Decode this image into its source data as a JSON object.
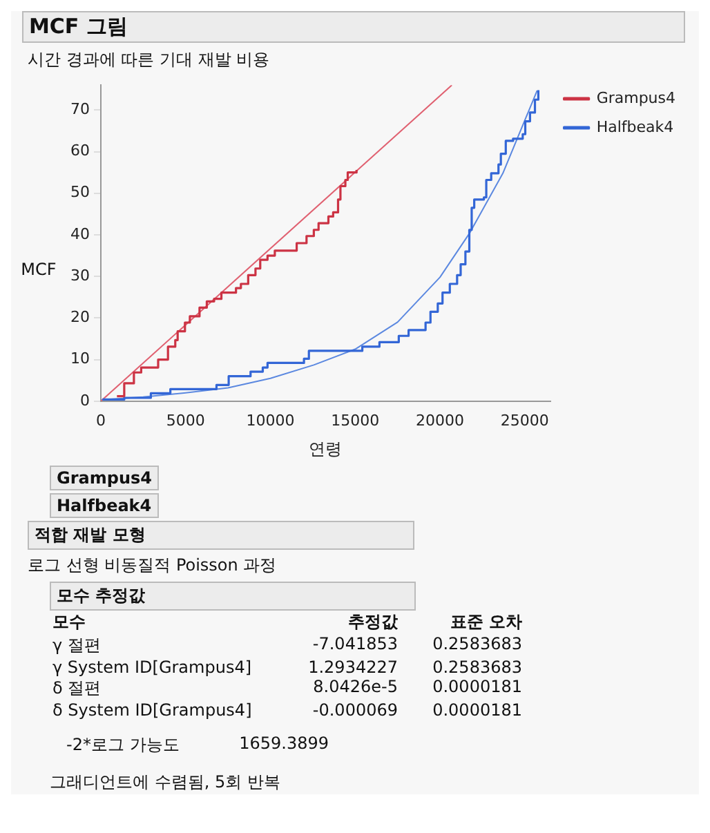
{
  "chart_data": {
    "type": "step",
    "title": "MCF 그림",
    "subtitle": "시간 경과에 따른 기대 재발 비용",
    "xlabel": "연령",
    "ylabel": "MCF",
    "xlim": [
      0,
      26500
    ],
    "xticks": [
      0,
      5000,
      10000,
      15000,
      20000,
      25000
    ],
    "ylim": [
      0,
      76
    ],
    "yticks": [
      0,
      10,
      20,
      30,
      40,
      50,
      60,
      70
    ],
    "grid": false,
    "legend": "top right",
    "series": [
      {
        "name": "Grampus4",
        "color": "#cc3344",
        "x": [
          950,
          1380,
          1950,
          2380,
          3380,
          3960,
          4390,
          4530,
          4960,
          5250,
          5820,
          6250,
          6680,
          7110,
          7970,
          8260,
          8690,
          9120,
          9400,
          9830,
          10260,
          11550,
          12130,
          12560,
          12840,
          13420,
          13700,
          13990,
          14130,
          14420,
          14560,
          15080
        ],
        "values": [
          1.2,
          4.3,
          6.9,
          8.1,
          10,
          13.1,
          14.7,
          16.8,
          18.9,
          20.4,
          22.5,
          24,
          24.6,
          26.1,
          27.2,
          28.2,
          30.3,
          31.9,
          34,
          35,
          36.2,
          38,
          39.7,
          41.2,
          42.8,
          44.4,
          45.4,
          48.5,
          51.7,
          53.2,
          55,
          55.6
        ]
      },
      {
        "name": "Halfbeak4",
        "color": "#3366d6",
        "x": [
          90,
          1380,
          2950,
          4100,
          6820,
          7540,
          8830,
          9550,
          9830,
          11980,
          12270,
          15420,
          16430,
          17570,
          18150,
          19150,
          19440,
          19870,
          20150,
          20580,
          21010,
          21220,
          21500,
          21730,
          21870,
          22020,
          22590,
          22730,
          23020,
          23450,
          23590,
          23880,
          24310,
          24880,
          25030,
          25310,
          25600,
          25800
        ],
        "values": [
          0.4,
          0.8,
          1.9,
          2.9,
          3.9,
          6,
          7.1,
          8.1,
          9.2,
          10.2,
          12.1,
          13.1,
          14.2,
          15.7,
          17.1,
          18.9,
          21.5,
          23.5,
          26.1,
          28.2,
          30.3,
          32.9,
          36,
          41.2,
          46.5,
          48.5,
          49,
          53.2,
          54.8,
          56.9,
          59.5,
          62.6,
          63.1,
          64.2,
          67.3,
          69.4,
          72.5,
          74.8
        ]
      },
      {
        "type": "line",
        "color": "#e06070",
        "x": [
          0,
          20700
        ],
        "values": [
          0,
          76
        ]
      },
      {
        "type": "line",
        "color": "#5b88e0",
        "x": [
          0,
          2500,
          5000,
          7500,
          10000,
          12560,
          15000,
          17500,
          20000,
          21730,
          23710,
          25730
        ],
        "values": [
          0.3,
          1,
          2,
          3.2,
          5.5,
          8.7,
          12.5,
          19,
          29.8,
          40.3,
          54.8,
          74.7
        ]
      }
    ],
    "annotations": [
      "Grampus4",
      "Halfbeak4",
      "적합 재발 모형",
      "로그 선형 비동질적 Poisson 과정",
      "모수 추정값",
      "모수\t추정값\t표준 오차",
      "γ 절편\t-7.041853\t0.2583683",
      "γ System ID[Grampus4]\t1.2934227\t0.2583683",
      "δ 절편\t8.0426e-5\t0.0000181",
      "δ System ID[Grampus4]\t-0.000069\t0.0000181",
      "-2*로그 가능도\t1659.3899",
      "그래디언트에 수렴됨, 5회 반복"
    ]
  }
}
